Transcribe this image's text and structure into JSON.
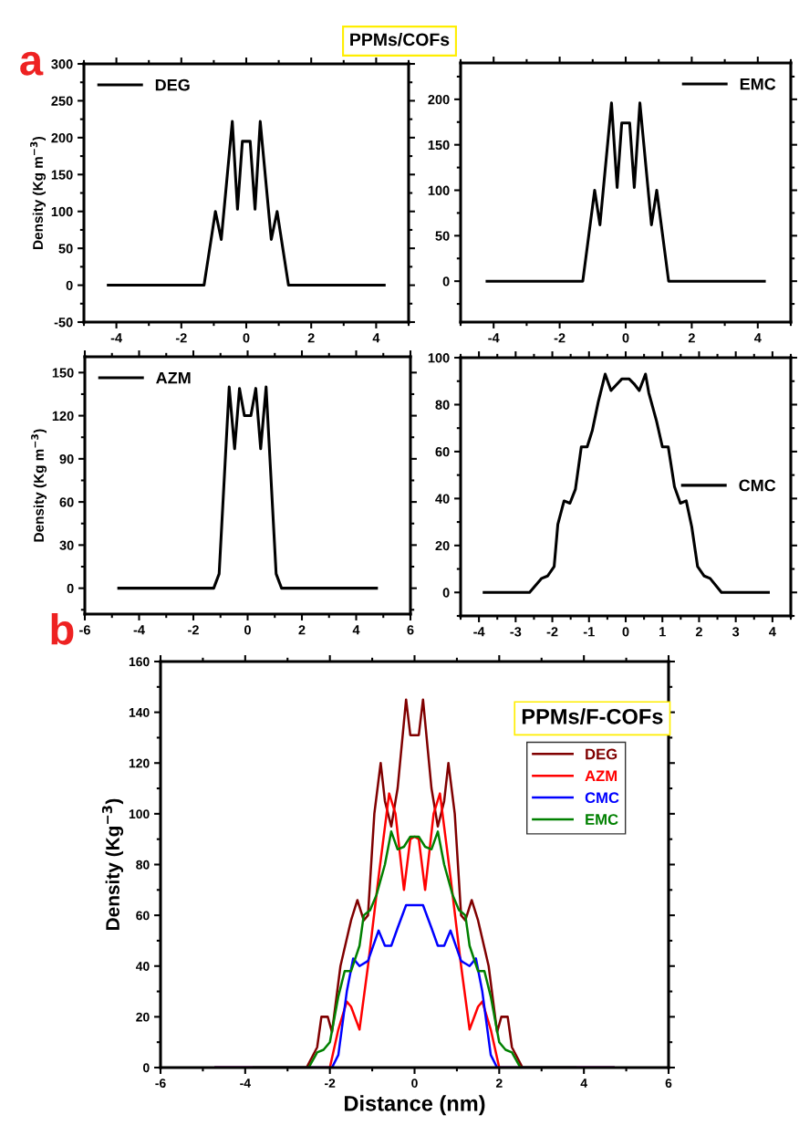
{
  "chart_data": [
    {
      "type": "line",
      "title": "PPMs/COFs",
      "ylabel": "Density (Kg m$^{−3}$)",
      "annotations": [
        "a"
      ],
      "xlim": [
        -5,
        5
      ],
      "xticks": [
        -4,
        -2,
        0,
        2,
        4
      ],
      "ylim": [
        -50,
        300
      ],
      "yticks": [
        -50,
        0,
        50,
        100,
        150,
        200,
        250,
        300
      ],
      "legend": "top left",
      "grid": false,
      "series": [
        {
          "name": "DEG",
          "color": "#000000",
          "x": [
            -4.25,
            -1.3,
            -0.95,
            -0.77,
            -0.43,
            -0.27,
            -0.12,
            0.12,
            0.27,
            0.43,
            0.77,
            0.95,
            1.3,
            4.25
          ],
          "values": [
            0,
            0,
            100,
            62,
            222,
            103,
            195,
            195,
            103,
            222,
            62,
            100,
            0,
            0
          ]
        }
      ]
    },
    {
      "type": "line",
      "xlim": [
        -5,
        5
      ],
      "xticks": [
        -4,
        -2,
        0,
        2,
        4
      ],
      "ylim": [
        -45,
        240
      ],
      "yticks": [
        0,
        50,
        100,
        150,
        200
      ],
      "legend": "top right",
      "grid": false,
      "series": [
        {
          "name": "EMC",
          "color": "#000000",
          "x": [
            -4.2,
            -1.3,
            -0.94,
            -0.78,
            -0.43,
            -0.26,
            -0.12,
            0.12,
            0.26,
            0.43,
            0.78,
            0.94,
            1.3,
            4.2
          ],
          "values": [
            0,
            0,
            100,
            62,
            196,
            103,
            174,
            174,
            103,
            196,
            62,
            100,
            0,
            0
          ]
        }
      ]
    },
    {
      "type": "line",
      "ylabel": "Density (Kg m$^{−3}$)",
      "xlim": [
        -6,
        6
      ],
      "xticks": [
        -6,
        -4,
        -2,
        0,
        2,
        4,
        6
      ],
      "ylim": [
        -18,
        161
      ],
      "yticks": [
        0,
        30,
        60,
        90,
        120,
        150
      ],
      "legend": "top left",
      "grid": false,
      "series": [
        {
          "name": "AZM",
          "color": "#000000",
          "x": [
            -4.75,
            -1.25,
            -1.05,
            -0.68,
            -0.48,
            -0.3,
            -0.12,
            0.12,
            0.3,
            0.48,
            0.68,
            1.05,
            1.25,
            4.75
          ],
          "values": [
            0,
            0,
            10,
            140,
            97,
            139,
            120,
            120,
            139,
            97,
            140,
            10,
            0,
            0
          ]
        }
      ]
    },
    {
      "type": "line",
      "xlim": [
        -4.5,
        4.5
      ],
      "xticks": [
        -4,
        -3,
        -2,
        -1,
        0,
        1,
        2,
        3,
        4
      ],
      "ylim": [
        -10,
        100
      ],
      "yticks": [
        0,
        20,
        40,
        60,
        80,
        100
      ],
      "legend": "right",
      "grid": false,
      "series": [
        {
          "name": "CMC",
          "color": "#000000",
          "x": [
            -3.86,
            -2.62,
            -2.29,
            -2.13,
            -1.95,
            -1.85,
            -1.68,
            -1.52,
            -1.37,
            -1.21,
            -1.05,
            -0.91,
            -0.75,
            -0.56,
            -0.4,
            -0.22,
            -0.1,
            0.09,
            0.22,
            0.37,
            0.54,
            0.63,
            0.84,
            1.0,
            1.16,
            1.33,
            1.49,
            1.65,
            1.8,
            1.96,
            2.14,
            2.3,
            2.61,
            3.89
          ],
          "values": [
            0,
            0,
            6,
            7,
            11,
            29,
            39,
            38,
            44,
            62,
            62,
            69,
            81,
            93,
            86,
            89,
            91,
            91,
            89,
            86,
            93,
            85,
            73,
            62,
            62,
            45,
            38,
            39,
            28,
            11,
            7,
            6,
            0,
            0
          ]
        }
      ]
    },
    {
      "type": "line",
      "xlabel": "Distance (nm)",
      "ylabel": "Density (Kg$^{−3}$)",
      "annotations": [
        "b",
        "PPMs/F-COFs"
      ],
      "xlim": [
        -6,
        6
      ],
      "xticks": [
        -6,
        -4,
        -2,
        0,
        2,
        4,
        6
      ],
      "ylim": [
        0,
        160
      ],
      "yticks": [
        0,
        20,
        40,
        60,
        80,
        100,
        120,
        140,
        160
      ],
      "legend": "top right",
      "grid": false,
      "series": [
        {
          "name": "DEG",
          "color": "#800000",
          "x": [
            -4.7,
            -2.55,
            -2.3,
            -2.2,
            -2.05,
            -1.95,
            -1.75,
            -1.5,
            -1.35,
            -1.2,
            -1.1,
            -0.95,
            -0.8,
            -0.7,
            -0.55,
            -0.4,
            -0.2,
            -0.1,
            0.1,
            0.2,
            0.4,
            0.55,
            0.7,
            0.8,
            0.95,
            1.1,
            1.2,
            1.35,
            1.5,
            1.75,
            1.95,
            2.05,
            2.2,
            2.3,
            2.55,
            4.7
          ],
          "values": [
            0,
            0,
            8,
            20,
            20,
            14,
            40,
            58,
            66,
            58,
            60,
            100,
            120,
            105,
            95,
            110,
            145,
            131,
            131,
            145,
            110,
            95,
            105,
            120,
            100,
            60,
            58,
            66,
            58,
            40,
            14,
            20,
            20,
            8,
            0,
            0
          ]
        },
        {
          "name": "AZM",
          "color": "#ff0000",
          "x": [
            -4.7,
            -2.0,
            -1.8,
            -1.6,
            -1.5,
            -1.3,
            -1.1,
            -0.85,
            -0.6,
            -0.45,
            -0.25,
            -0.1,
            0,
            0.1,
            0.25,
            0.45,
            0.6,
            0.85,
            1.1,
            1.3,
            1.5,
            1.6,
            1.8,
            2.0,
            4.7
          ],
          "values": [
            0,
            0,
            15,
            26,
            24,
            15,
            40,
            75,
            108,
            100,
            70,
            90,
            91,
            90,
            70,
            100,
            108,
            75,
            40,
            15,
            24,
            26,
            15,
            0,
            0
          ]
        },
        {
          "name": "CMC",
          "color": "#0000ff",
          "x": [
            -4.7,
            -1.95,
            -1.8,
            -1.6,
            -1.45,
            -1.3,
            -1.1,
            -0.85,
            -0.7,
            -0.55,
            -0.4,
            -0.2,
            0.2,
            0.4,
            0.55,
            0.7,
            0.85,
            1.1,
            1.3,
            1.45,
            1.6,
            1.8,
            1.95,
            4.7
          ],
          "values": [
            0,
            0,
            5,
            30,
            43,
            40,
            42,
            54,
            48,
            48,
            55,
            64,
            64,
            55,
            48,
            48,
            54,
            42,
            40,
            43,
            30,
            5,
            0,
            0
          ]
        },
        {
          "name": "EMC",
          "color": "#008000",
          "x": [
            -3.8,
            -2.5,
            -2.3,
            -2.15,
            -2.0,
            -1.8,
            -1.65,
            -1.5,
            -1.3,
            -1.2,
            -1.05,
            -0.9,
            -0.7,
            -0.55,
            -0.4,
            -0.25,
            -0.1,
            0.1,
            0.25,
            0.4,
            0.55,
            0.7,
            0.9,
            1.05,
            1.2,
            1.3,
            1.5,
            1.65,
            1.8,
            2.0,
            2.15,
            2.3,
            2.5,
            3.8
          ],
          "values": [
            0,
            0,
            6,
            7,
            10,
            28,
            38,
            38,
            48,
            60,
            62,
            68,
            80,
            93,
            86,
            87,
            91,
            91,
            87,
            86,
            93,
            80,
            68,
            62,
            60,
            48,
            38,
            38,
            28,
            10,
            7,
            6,
            0,
            0
          ]
        }
      ]
    }
  ]
}
